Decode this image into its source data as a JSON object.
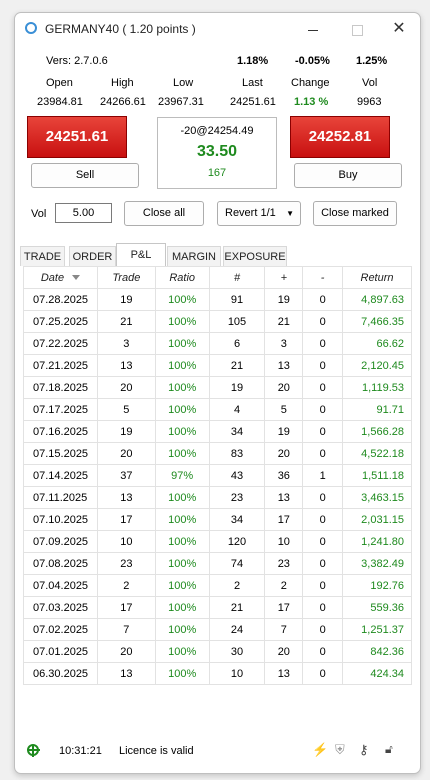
{
  "window": {
    "title": "GERMANY40 ( 1.20 points )"
  },
  "header": {
    "version": "Vers: 2.7.0.6",
    "pct1": "1.18%",
    "pct2": "-0.05%",
    "pct3": "1.25%",
    "labels": {
      "open": "Open",
      "high": "High",
      "low": "Low",
      "last": "Last",
      "change": "Change",
      "vol": "Vol"
    },
    "values": {
      "open": "23984.81",
      "high": "24266.61",
      "low": "23967.31",
      "last": "24251.61",
      "change": "1.13 %",
      "vol": "9963"
    }
  },
  "trade": {
    "sell_price": "24251.61",
    "buy_price": "24252.81",
    "sell_label": "Sell",
    "buy_label": "Buy",
    "position": "-20@24254.49",
    "pnl": "33.50",
    "points": "167",
    "vol_label": "Vol",
    "vol_value": "5.00",
    "close_all": "Close all",
    "revert": "Revert 1/1",
    "close_marked": "Close marked"
  },
  "tabs": [
    "TRADE",
    "ORDER",
    "P&L",
    "MARGIN",
    "EXPOSURE"
  ],
  "active_tab": "P&L",
  "table": {
    "columns": [
      "Date",
      "Trade",
      "Ratio",
      "#",
      "+",
      "-",
      "Return"
    ],
    "rows": [
      [
        "07.28.2025",
        "19",
        "100%",
        "91",
        "19",
        "0",
        "4,897.63"
      ],
      [
        "07.25.2025",
        "21",
        "100%",
        "105",
        "21",
        "0",
        "7,466.35"
      ],
      [
        "07.22.2025",
        "3",
        "100%",
        "6",
        "3",
        "0",
        "66.62"
      ],
      [
        "07.21.2025",
        "13",
        "100%",
        "21",
        "13",
        "0",
        "2,120.45"
      ],
      [
        "07.18.2025",
        "20",
        "100%",
        "19",
        "20",
        "0",
        "1,119.53"
      ],
      [
        "07.17.2025",
        "5",
        "100%",
        "4",
        "5",
        "0",
        "91.71"
      ],
      [
        "07.16.2025",
        "19",
        "100%",
        "34",
        "19",
        "0",
        "1,566.28"
      ],
      [
        "07.15.2025",
        "20",
        "100%",
        "83",
        "20",
        "0",
        "4,522.18"
      ],
      [
        "07.14.2025",
        "37",
        "97%",
        "43",
        "36",
        "1",
        "1,511.18"
      ],
      [
        "07.11.2025",
        "13",
        "100%",
        "23",
        "13",
        "0",
        "3,463.15"
      ],
      [
        "07.10.2025",
        "17",
        "100%",
        "34",
        "17",
        "0",
        "2,031.15"
      ],
      [
        "07.09.2025",
        "10",
        "100%",
        "120",
        "10",
        "0",
        "1,241.80"
      ],
      [
        "07.08.2025",
        "23",
        "100%",
        "74",
        "23",
        "0",
        "3,382.49"
      ],
      [
        "07.04.2025",
        "2",
        "100%",
        "2",
        "2",
        "0",
        "192.76"
      ],
      [
        "07.03.2025",
        "17",
        "100%",
        "21",
        "17",
        "0",
        "559.36"
      ],
      [
        "07.02.2025",
        "7",
        "100%",
        "24",
        "7",
        "0",
        "1,251.37"
      ],
      [
        "07.01.2025",
        "20",
        "100%",
        "30",
        "20",
        "0",
        "842.36"
      ],
      [
        "06.30.2025",
        "13",
        "100%",
        "10",
        "13",
        "0",
        "424.34"
      ]
    ]
  },
  "status": {
    "time": "10:31:21",
    "licence": "Licence is valid",
    "icons": [
      "globe-icon",
      "lightning-icon",
      "shield-icon",
      "key-icon",
      "unlock-icon"
    ]
  },
  "colors": {
    "sell_red": "#d42a20",
    "buy_red": "#d42a20",
    "positive_green": "#1e8a1e"
  }
}
